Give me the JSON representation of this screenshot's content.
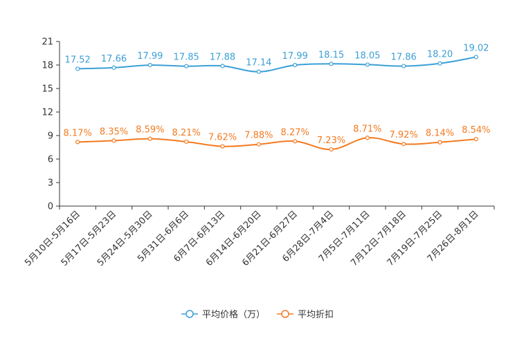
{
  "chart_data": {
    "type": "line",
    "title": "",
    "xlabel": "",
    "ylabel": "",
    "ylim": [
      0,
      21
    ],
    "yticks": [
      0,
      3,
      6,
      9,
      12,
      15,
      18,
      21
    ],
    "grid": false,
    "legend_position": "bottom",
    "categories": [
      "5月10日-5月16日",
      "5月17日-5月23日",
      "5月24日-5月30日",
      "5月31日-6月6日",
      "6月7日-6月13日",
      "6月14日-6月20日",
      "6月21日-6月27日",
      "6月28日-7月4日",
      "7月5日-7月11日",
      "7月12日-7月18日",
      "7月19日-7月25日",
      "7月26日-8月1日"
    ],
    "series": [
      {
        "name": "平均价格（万）",
        "color": "#3a9fd6",
        "values": [
          17.52,
          17.66,
          17.99,
          17.85,
          17.88,
          17.14,
          17.99,
          18.15,
          18.05,
          17.86,
          18.2,
          19.02
        ],
        "labels": [
          "17.52",
          "17.66",
          "17.99",
          "17.85",
          "17.88",
          "17.14",
          "17.99",
          "18.15",
          "18.05",
          "17.86",
          "18.20",
          "19.02"
        ]
      },
      {
        "name": "平均折扣",
        "color": "#f47a20",
        "values": [
          8.17,
          8.35,
          8.59,
          8.21,
          7.62,
          7.88,
          8.27,
          7.23,
          8.71,
          7.92,
          8.14,
          8.54
        ],
        "labels": [
          "8.17%",
          "8.35%",
          "8.59%",
          "8.21%",
          "7.62%",
          "7.88%",
          "8.27%",
          "7.23%",
          "8.71%",
          "7.92%",
          "8.14%",
          "8.54%"
        ]
      }
    ]
  }
}
